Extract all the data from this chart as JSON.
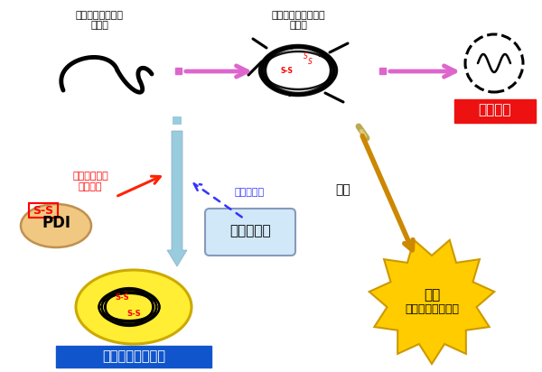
{
  "bg_color": "#ffffff",
  "text_new_protein_line1": "新規に合成された",
  "text_new_protein_line2": "蛋白質",
  "text_misfolded_line1": "ミスフォールドした",
  "text_misfolded_line2": "蛋白質",
  "text_degradation": "分解除去",
  "text_disulfide_line1": "ジスルフィド",
  "text_disulfide_line2": "結合形成",
  "text_aggregation_inhibit": "凝集の抑制",
  "text_chaperone": "シャペロン",
  "text_accumulation": "蓄積",
  "text_disease_line1": "疾病",
  "text_disease_line2": "（神経変性疾患）",
  "text_structure": "立体構造形成促進",
  "text_pdi": "PDI",
  "text_ss": "S-S",
  "arrow_pink_color": "#dd66cc",
  "down_arrow_color": "#99ccdd",
  "diagonal_arrow_color": "#cc8800",
  "disulfide_arrow_color": "#ff2200",
  "blue_dotted_color": "#3333ff",
  "degradation_box_color": "#ee1111",
  "structure_box_color": "#1155cc",
  "chaperone_box_fill": "#d0e8f8",
  "chaperone_box_edge": "#8899bb",
  "disease_star_color": "#ffcc00",
  "disease_star_edge": "#cc9900",
  "pdi_ellipse_fill": "#f0c882",
  "pdi_ellipse_edge": "#c09050",
  "yellow_ellipse_fill": "#ffee33",
  "yellow_ellipse_edge": "#ccaa00",
  "font_jp": "IPAexGothic",
  "font_fallback": "DejaVu Sans"
}
